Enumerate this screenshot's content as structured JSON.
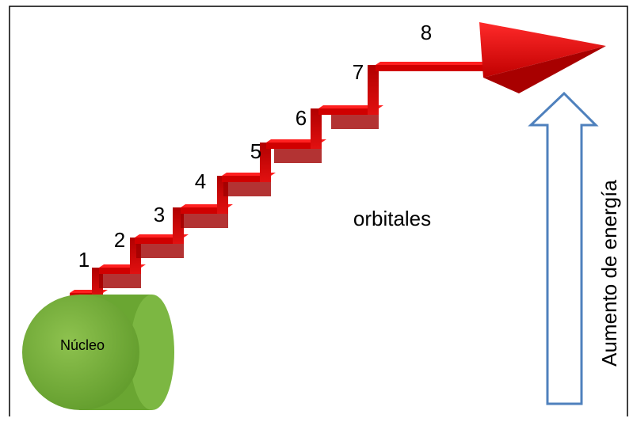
{
  "steps": [
    "1",
    "2",
    "3",
    "4",
    "5",
    "6",
    "7",
    "8"
  ],
  "orbitals_label": "orbitales",
  "nucleus_label": "Núcleo",
  "energy_label": "Aumento de energía"
}
